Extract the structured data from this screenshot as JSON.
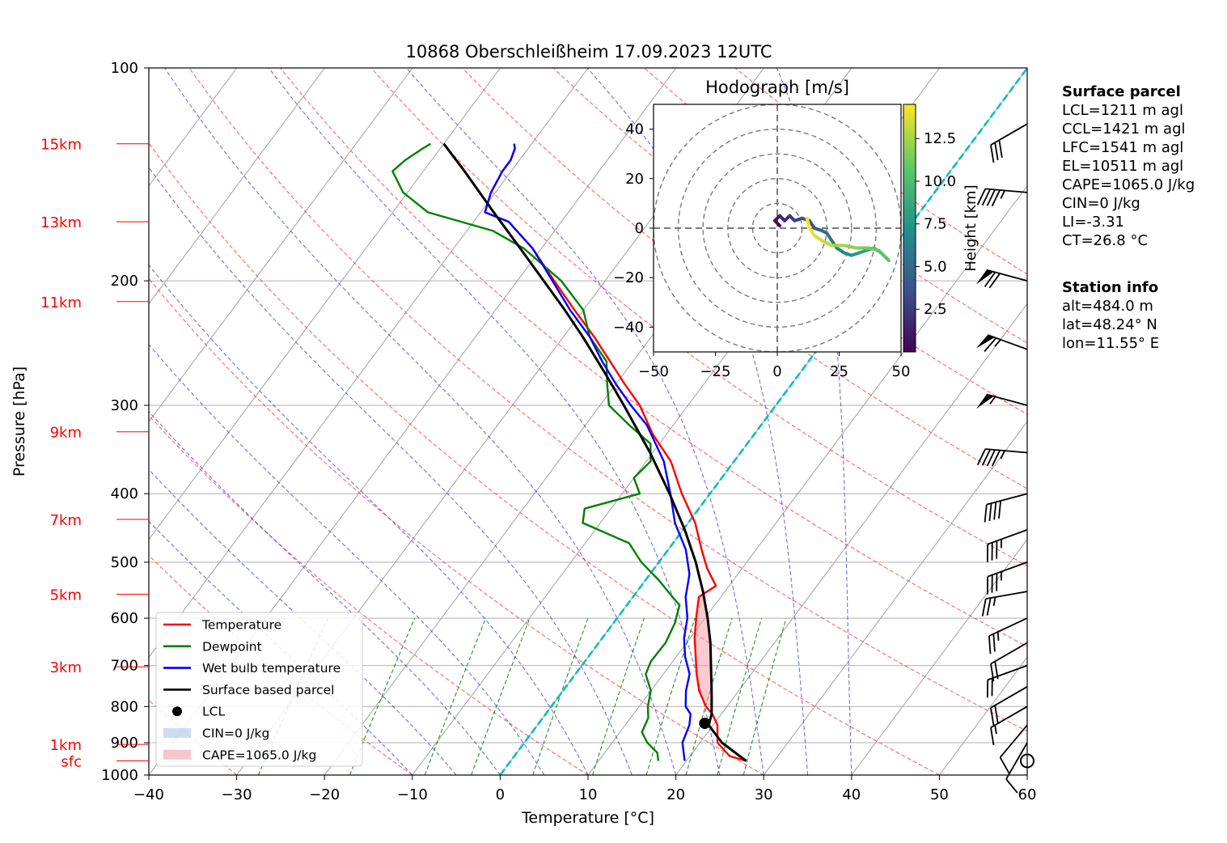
{
  "chart_data": {
    "type": "line",
    "title": "10868 Oberschleißheim 17.09.2023 12UTC",
    "xlabel": "Temperature [°C]",
    "ylabel": "Pressure [hPa]",
    "xlim": [
      -40,
      60
    ],
    "ylim": [
      1000,
      100
    ],
    "y_scale": "log",
    "skew": "skew-T",
    "x_ticks": [
      -40,
      -30,
      -20,
      -10,
      0,
      10,
      20,
      30,
      40,
      50,
      60
    ],
    "x_tick_labels": [
      "−40",
      "−30",
      "−20",
      "−10",
      "0",
      "10",
      "20",
      "30",
      "40",
      "50",
      "60"
    ],
    "y_ticks": [
      100,
      200,
      300,
      400,
      500,
      600,
      700,
      800,
      900,
      1000
    ],
    "height_labels": [
      {
        "label": "15km",
        "p": 128
      },
      {
        "label": "13km",
        "p": 165
      },
      {
        "label": "11km",
        "p": 214
      },
      {
        "label": "9km",
        "p": 327
      },
      {
        "label": "7km",
        "p": 435
      },
      {
        "label": "5km",
        "p": 555
      },
      {
        "label": "3km",
        "p": 703
      },
      {
        "label": "1km",
        "p": 905
      },
      {
        "label": "sfc",
        "p": 955
      }
    ],
    "grid": true,
    "legend": {
      "placement": "lower-left",
      "entries": [
        "Temperature",
        "Dewpoint",
        "Wet bulb temperature",
        "Surface based parcel",
        "LCL",
        "CIN=0 J/kg",
        "CAPE=1065.0 J/kg"
      ]
    },
    "series": [
      {
        "name": "Temperature",
        "color": "#ff0000",
        "points": [
          [
            955,
            26.8
          ],
          [
            940,
            24.5
          ],
          [
            900,
            22
          ],
          [
            850,
            20.5
          ],
          [
            820,
            19
          ],
          [
            800,
            17.6
          ],
          [
            760,
            15.5
          ],
          [
            720,
            13.8
          ],
          [
            680,
            12.2
          ],
          [
            640,
            10.5
          ],
          [
            600,
            9
          ],
          [
            560,
            7.5
          ],
          [
            540,
            8.5
          ],
          [
            510,
            6
          ],
          [
            480,
            3.8
          ],
          [
            440,
            0.8
          ],
          [
            400,
            -3.2
          ],
          [
            360,
            -7.2
          ],
          [
            330,
            -11.5
          ],
          [
            300,
            -15.5
          ],
          [
            280,
            -19
          ],
          [
            260,
            -22.6
          ],
          [
            240,
            -26.5
          ],
          [
            220,
            -31
          ],
          [
            200,
            -35.8
          ],
          [
            180,
            -41
          ],
          [
            165,
            -46
          ],
          [
            160,
            -49.5
          ],
          [
            150,
            -50.5
          ],
          [
            140,
            -51
          ],
          [
            135,
            -51
          ],
          [
            130,
            -51.5
          ],
          [
            128,
            -52
          ]
        ]
      },
      {
        "name": "Dewpoint",
        "color": "#008000",
        "points": [
          [
            955,
            16.8
          ],
          [
            930,
            16
          ],
          [
            900,
            14
          ],
          [
            870,
            12.5
          ],
          [
            830,
            12
          ],
          [
            800,
            11
          ],
          [
            760,
            10
          ],
          [
            720,
            8
          ],
          [
            690,
            7.5
          ],
          [
            650,
            7.6
          ],
          [
            610,
            7
          ],
          [
            575,
            6
          ],
          [
            560,
            4.5
          ],
          [
            530,
            1.5
          ],
          [
            500,
            -2
          ],
          [
            470,
            -5
          ],
          [
            440,
            -12
          ],
          [
            420,
            -13
          ],
          [
            400,
            -8
          ],
          [
            380,
            -10
          ],
          [
            360,
            -9.5
          ],
          [
            340,
            -11
          ],
          [
            320,
            -15
          ],
          [
            300,
            -19
          ],
          [
            280,
            -21
          ],
          [
            260,
            -23
          ],
          [
            240,
            -27
          ],
          [
            220,
            -30
          ],
          [
            200,
            -35
          ],
          [
            180,
            -42
          ],
          [
            170,
            -47
          ],
          [
            160,
            -56
          ],
          [
            150,
            -60.5
          ],
          [
            140,
            -63.5
          ],
          [
            135,
            -63
          ],
          [
            130,
            -62
          ],
          [
            128,
            -61.5
          ]
        ]
      },
      {
        "name": "Wet bulb temperature",
        "color": "#0000ff",
        "points": [
          [
            955,
            19.8
          ],
          [
            900,
            18
          ],
          [
            850,
            17.3
          ],
          [
            820,
            16.5
          ],
          [
            800,
            15.3
          ],
          [
            760,
            14
          ],
          [
            720,
            13
          ],
          [
            680,
            11
          ],
          [
            640,
            9.3
          ],
          [
            600,
            8
          ],
          [
            560,
            6
          ],
          [
            520,
            4.5
          ],
          [
            480,
            2
          ],
          [
            440,
            -1.5
          ],
          [
            400,
            -4.5
          ],
          [
            360,
            -8
          ],
          [
            320,
            -13
          ],
          [
            300,
            -16.5
          ],
          [
            280,
            -20
          ],
          [
            260,
            -23.5
          ],
          [
            240,
            -27
          ],
          [
            220,
            -31.5
          ],
          [
            200,
            -36
          ],
          [
            180,
            -41
          ],
          [
            165,
            -46
          ],
          [
            160,
            -49.5
          ],
          [
            150,
            -50.5
          ],
          [
            140,
            -51
          ],
          [
            135,
            -51
          ],
          [
            130,
            -51.5
          ],
          [
            128,
            -52
          ]
        ]
      },
      {
        "name": "Surface based parcel",
        "color": "#000000",
        "points": [
          [
            955,
            26.8
          ],
          [
            900,
            22.5
          ],
          [
            850,
            19.5
          ],
          [
            820,
            18.9
          ],
          [
            780,
            17.6
          ],
          [
            740,
            16.2
          ],
          [
            700,
            14.7
          ],
          [
            650,
            12.7
          ],
          [
            600,
            10.3
          ],
          [
            550,
            7.5
          ],
          [
            500,
            4.2
          ],
          [
            450,
            0.2
          ],
          [
            400,
            -4.6
          ],
          [
            350,
            -10.3
          ],
          [
            300,
            -17.3
          ],
          [
            270,
            -22.2
          ],
          [
            240,
            -27.8
          ],
          [
            220,
            -32.1
          ],
          [
            200,
            -37
          ],
          [
            180,
            -42.4
          ],
          [
            160,
            -48.5
          ],
          [
            140,
            -55.3
          ],
          [
            128,
            -60
          ]
        ]
      }
    ],
    "lcl": {
      "label": "LCL",
      "p": 845,
      "t": 18.9
    },
    "cape_label": "CAPE=1065.0 J/kg",
    "cin_label": "CIN=0 J/kg",
    "wind_barbs": [
      {
        "p": 955,
        "speed_kt": 5,
        "dir": 200,
        "calm": true
      },
      {
        "p": 900,
        "speed_kt": 10,
        "dir": 210
      },
      {
        "p": 850,
        "speed_kt": 10,
        "dir": 220
      },
      {
        "p": 800,
        "speed_kt": 15,
        "dir": 240
      },
      {
        "p": 750,
        "speed_kt": 20,
        "dir": 240
      },
      {
        "p": 700,
        "speed_kt": 20,
        "dir": 250
      },
      {
        "p": 650,
        "speed_kt": 20,
        "dir": 240
      },
      {
        "p": 600,
        "speed_kt": 25,
        "dir": 245
      },
      {
        "p": 550,
        "speed_kt": 25,
        "dir": 260
      },
      {
        "p": 500,
        "speed_kt": 35,
        "dir": 250
      },
      {
        "p": 450,
        "speed_kt": 35,
        "dir": 250
      },
      {
        "p": 400,
        "speed_kt": 40,
        "dir": 255
      },
      {
        "p": 350,
        "speed_kt": 45,
        "dir": 275
      },
      {
        "p": 300,
        "speed_kt": 55,
        "dir": 285
      },
      {
        "p": 250,
        "speed_kt": 65,
        "dir": 290
      },
      {
        "p": 200,
        "speed_kt": 70,
        "dir": 285
      },
      {
        "p": 150,
        "speed_kt": 45,
        "dir": 275
      },
      {
        "p": 120,
        "speed_kt": 30,
        "dir": 240
      }
    ],
    "hodograph": {
      "title": "Hodograph [m/s]",
      "xlim": [
        -50,
        50
      ],
      "ylim": [
        -50,
        50
      ],
      "x_ticks": [
        -50,
        -25,
        0,
        25,
        50
      ],
      "x_tick_labels": [
        "−50",
        "−25",
        "0",
        "25",
        "50"
      ],
      "y_ticks": [
        -40,
        -20,
        0,
        20,
        40
      ],
      "y_tick_labels": [
        "−40",
        "−20",
        "0",
        "20",
        "40"
      ],
      "rings": [
        10,
        20,
        30,
        40,
        50
      ],
      "colorbar": {
        "label": "Height [km]",
        "ticks": [
          2.5,
          5.0,
          7.5,
          10.0,
          12.5
        ],
        "tick_labels": [
          "2.5",
          "5.0",
          "7.5",
          "10.0",
          "12.5"
        ],
        "range": [
          0,
          14.5
        ],
        "cmap": "viridis"
      },
      "points": [
        {
          "u": 1,
          "v": 1,
          "h": 0.5
        },
        {
          "u": -1,
          "v": 3,
          "h": 1.0
        },
        {
          "u": 1,
          "v": 5,
          "h": 1.5
        },
        {
          "u": 3,
          "v": 3,
          "h": 2.0
        },
        {
          "u": 5,
          "v": 5,
          "h": 2.5
        },
        {
          "u": 7,
          "v": 3,
          "h": 3.0
        },
        {
          "u": 10,
          "v": 4,
          "h": 3.5
        },
        {
          "u": 13,
          "v": 3,
          "h": 4.0
        },
        {
          "u": 15,
          "v": 0,
          "h": 4.5
        },
        {
          "u": 18,
          "v": -1,
          "h": 5.0
        },
        {
          "u": 20,
          "v": -2,
          "h": 5.5
        },
        {
          "u": 22,
          "v": -5,
          "h": 6.0
        },
        {
          "u": 24,
          "v": -8,
          "h": 6.5
        },
        {
          "u": 27,
          "v": -10,
          "h": 7.0
        },
        {
          "u": 30,
          "v": -11,
          "h": 7.5
        },
        {
          "u": 33,
          "v": -10,
          "h": 8.0
        },
        {
          "u": 36,
          "v": -9,
          "h": 8.5
        },
        {
          "u": 39,
          "v": -8,
          "h": 9.0
        },
        {
          "u": 42,
          "v": -10,
          "h": 9.5
        },
        {
          "u": 44,
          "v": -12,
          "h": 10.0
        },
        {
          "u": 45,
          "v": -13,
          "h": 10.5
        },
        {
          "u": 41,
          "v": -9,
          "h": 11.0
        },
        {
          "u": 37,
          "v": -8,
          "h": 11.5
        },
        {
          "u": 32,
          "v": -8,
          "h": 12.0
        },
        {
          "u": 27,
          "v": -7,
          "h": 12.5
        },
        {
          "u": 22,
          "v": -7,
          "h": 13.0
        },
        {
          "u": 18,
          "v": -5,
          "h": 13.5
        },
        {
          "u": 15,
          "v": -3,
          "h": 14.0
        },
        {
          "u": 13,
          "v": 0,
          "h": 14.3
        },
        {
          "u": 12,
          "v": 4,
          "h": 14.5
        }
      ]
    }
  },
  "info_panels": [
    {
      "heading": "Surface parcel",
      "lines": [
        "LCL=1211 m agl",
        "CCL=1421 m agl",
        "LFC=1541 m agl",
        "EL=10511 m agl",
        "CAPE=1065.0 J/kg",
        "CIN=0 J/kg",
        "LI=-3.31",
        "CT=26.8 °C"
      ]
    },
    {
      "heading": "Station info",
      "lines": [
        "alt=484.0 m",
        "lat=48.24° N",
        "lon=11.55° E"
      ]
    }
  ],
  "colors": {
    "isotherm": "#a0a0a0",
    "dry_adiabat": "#ff3030",
    "moist_adiabat": "#3030e0",
    "mixing_ratio": "#008000",
    "freezing_isotherm": "#00c0c0",
    "cape_fill": "#f2a0a8",
    "cin_fill": "#aac6e6",
    "height_label": "#ff0000"
  }
}
